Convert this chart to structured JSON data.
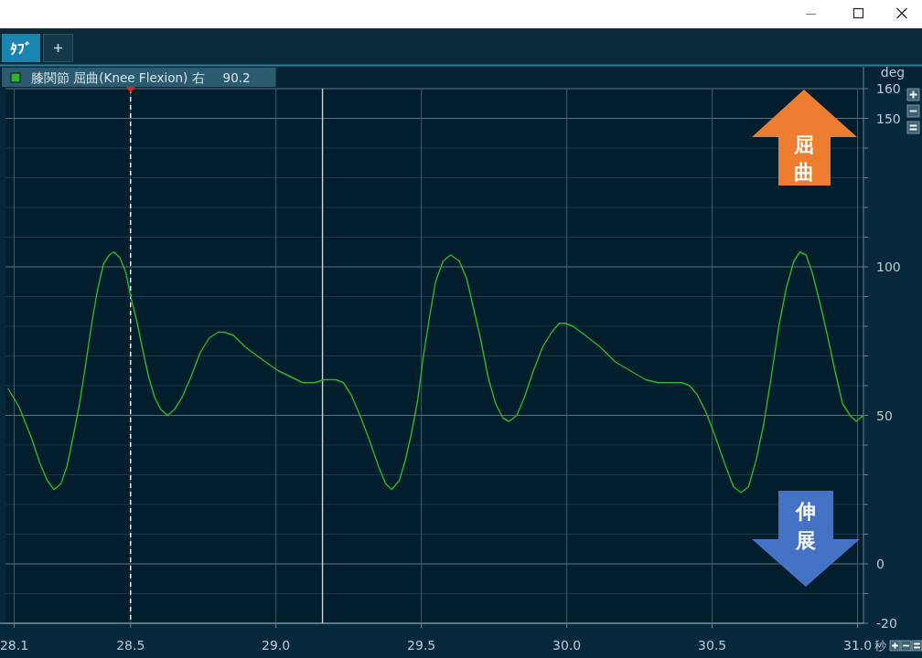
{
  "chart_data": {
    "type": "line",
    "title": "ﾀﾌﾞ",
    "xlabel": "秒",
    "ylabel": "deg",
    "x": [
      28.079,
      28.116,
      28.157,
      28.188,
      28.214,
      28.237,
      28.261,
      28.282,
      28.303,
      28.323,
      28.344,
      28.365,
      28.386,
      28.407,
      28.427,
      28.443,
      28.464,
      28.484,
      28.5,
      28.521,
      28.542,
      28.562,
      28.583,
      28.604,
      28.627,
      28.651,
      28.677,
      28.708,
      28.739,
      28.77,
      28.801,
      28.822,
      28.853,
      28.895,
      28.936,
      28.978,
      29.009,
      29.05,
      29.092,
      29.133,
      29.165,
      29.206,
      29.232,
      29.258,
      29.289,
      29.32,
      29.352,
      29.377,
      29.398,
      29.424,
      29.445,
      29.466,
      29.487,
      29.507,
      29.528,
      29.549,
      29.575,
      29.601,
      29.63,
      29.656,
      29.677,
      29.703,
      29.729,
      29.755,
      29.781,
      29.802,
      29.828,
      29.854,
      29.885,
      29.917,
      29.948,
      29.974,
      29.995,
      30.021,
      30.063,
      30.115,
      30.167,
      30.219,
      30.271,
      30.313,
      30.354,
      30.396,
      30.422,
      30.448,
      30.479,
      30.51,
      30.542,
      30.573,
      30.599,
      30.625,
      30.651,
      30.677,
      30.703,
      30.729,
      30.755,
      30.781,
      30.802,
      30.823,
      30.844,
      30.87,
      30.896,
      30.922,
      30.948,
      30.974,
      30.995,
      31.02
    ],
    "series": [
      {
        "name": "膝関節 屈曲(Knee Flexion) 右",
        "color": "#2fb52f",
        "values": [
          59,
          53,
          43,
          34,
          28,
          25,
          27,
          33,
          43,
          53,
          66,
          80,
          92,
          101,
          104,
          105,
          103,
          98,
          90.2,
          82,
          72,
          63,
          56,
          52,
          50,
          52,
          56,
          63,
          71,
          76,
          78,
          78,
          77,
          73,
          70,
          67,
          65,
          63,
          61,
          61,
          62,
          62,
          61,
          57,
          50,
          42,
          33,
          27,
          25,
          28,
          35,
          44,
          55,
          70,
          83,
          95,
          102,
          104,
          102,
          96,
          87,
          76,
          63,
          54,
          49,
          48,
          50,
          56,
          65,
          73,
          78,
          81,
          81,
          80,
          77,
          73,
          68,
          65,
          62,
          61,
          61,
          61,
          60,
          57,
          51,
          43,
          34,
          26,
          24,
          26,
          35,
          47,
          63,
          80,
          93,
          102,
          105,
          104,
          98,
          88,
          77,
          65,
          54,
          50,
          48,
          50
        ]
      }
    ],
    "xlim": [
      28.07,
      31.02
    ],
    "ylim": [
      -20,
      160
    ],
    "xticks": [
      28.1,
      28.5,
      {
        "value": 29,
        "label": "29.0"
      },
      29.5,
      {
        "value": 30,
        "label": "30.0"
      },
      30.5,
      {
        "value": 31,
        "label": "31.0"
      }
    ],
    "yticks": [
      -20,
      {
        "value": -10,
        "label": null
      },
      0,
      {
        "value": 10,
        "label": null
      },
      {
        "value": 20,
        "label": null
      },
      {
        "value": 30,
        "label": null
      },
      {
        "value": 40,
        "label": null
      },
      50,
      {
        "value": 60,
        "label": null
      },
      {
        "value": 70,
        "label": null
      },
      {
        "value": 80,
        "label": null
      },
      {
        "value": 90,
        "label": null
      },
      100,
      {
        "value": 110,
        "label": null
      },
      {
        "value": 120,
        "label": null
      },
      {
        "value": 130,
        "label": null
      },
      {
        "value": 140,
        "label": null
      },
      150,
      160
    ],
    "grid": true,
    "legend": "top left",
    "ref_lines": [
      {
        "axis": "x",
        "value": 28.5,
        "color": "#ffffff",
        "line_style": "dashed"
      },
      {
        "axis": "x",
        "value": 29.16,
        "color": "#c9d3d8"
      }
    ],
    "annotations": [
      "90.2",
      "屈曲",
      "伸展"
    ]
  }
}
